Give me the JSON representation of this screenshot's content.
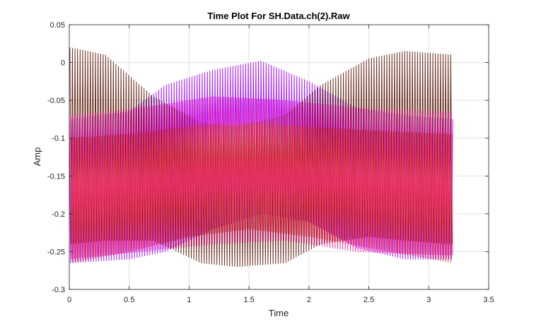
{
  "chart_data": {
    "type": "line",
    "title": "Time Plot For SH.Data.ch(2).Raw",
    "xlabel": "Time",
    "ylabel": "Amp",
    "xlim": [
      0,
      3.5
    ],
    "ylim": [
      -0.3,
      0.05
    ],
    "xticks": [
      0,
      0.5,
      1,
      1.5,
      2,
      2.5,
      3,
      3.5
    ],
    "xtick_labels": [
      "0",
      "0.5",
      "1",
      "1.5",
      "2",
      "2.5",
      "3",
      "3.5"
    ],
    "yticks": [
      -0.3,
      -0.25,
      -0.2,
      -0.15,
      -0.1,
      -0.05,
      0,
      0.05
    ],
    "ytick_labels": [
      "-0.3",
      "-0.25",
      "-0.2",
      "-0.15",
      "-0.1",
      "-0.05",
      "0",
      "0.05"
    ],
    "grid": true,
    "x_end": 3.2,
    "cycles": 150,
    "series": [
      {
        "color": "#a31aff",
        "envelope": [
          {
            "t": 0,
            "top": -0.075,
            "bottom": -0.265
          },
          {
            "t": 0.5,
            "top": -0.065,
            "bottom": -0.26
          },
          {
            "t": 0.8,
            "top": -0.03,
            "bottom": -0.25
          },
          {
            "t": 1.2,
            "top": -0.01,
            "bottom": -0.22
          },
          {
            "t": 1.6,
            "top": 0.002,
            "bottom": -0.2
          },
          {
            "t": 2.0,
            "top": -0.025,
            "bottom": -0.21
          },
          {
            "t": 2.4,
            "top": -0.06,
            "bottom": -0.245
          },
          {
            "t": 2.8,
            "top": -0.07,
            "bottom": -0.26
          },
          {
            "t": 3.2,
            "top": -0.075,
            "bottom": -0.26
          }
        ]
      },
      {
        "color": "#5a1a0a",
        "envelope": [
          {
            "t": 0,
            "top": 0.02,
            "bottom": -0.24
          },
          {
            "t": 0.3,
            "top": 0.01,
            "bottom": -0.235
          },
          {
            "t": 0.7,
            "top": -0.045,
            "bottom": -0.235
          },
          {
            "t": 1.1,
            "top": -0.08,
            "bottom": -0.265
          },
          {
            "t": 1.4,
            "top": -0.085,
            "bottom": -0.27
          },
          {
            "t": 1.8,
            "top": -0.07,
            "bottom": -0.265
          },
          {
            "t": 2.1,
            "top": -0.03,
            "bottom": -0.24
          },
          {
            "t": 2.5,
            "top": 0.005,
            "bottom": -0.23
          },
          {
            "t": 2.8,
            "top": 0.015,
            "bottom": -0.235
          },
          {
            "t": 3.2,
            "top": 0.01,
            "bottom": -0.24
          }
        ]
      },
      {
        "color": "#ff1a9c",
        "envelope": [
          {
            "t": 0,
            "top": -0.07,
            "bottom": -0.26
          },
          {
            "t": 0.6,
            "top": -0.06,
            "bottom": -0.25
          },
          {
            "t": 1.2,
            "top": -0.045,
            "bottom": -0.24
          },
          {
            "t": 1.8,
            "top": -0.05,
            "bottom": -0.235
          },
          {
            "t": 2.4,
            "top": -0.06,
            "bottom": -0.25
          },
          {
            "t": 3.2,
            "top": -0.065,
            "bottom": -0.255
          }
        ]
      },
      {
        "color": "#e6402a",
        "envelope": [
          {
            "t": 0,
            "top": -0.1,
            "bottom": -0.265
          },
          {
            "t": 0.5,
            "top": -0.095,
            "bottom": -0.25
          },
          {
            "t": 1.0,
            "top": -0.085,
            "bottom": -0.23
          },
          {
            "t": 1.5,
            "top": -0.08,
            "bottom": -0.22
          },
          {
            "t": 2.0,
            "top": -0.085,
            "bottom": -0.23
          },
          {
            "t": 2.5,
            "top": -0.09,
            "bottom": -0.245
          },
          {
            "t": 3.2,
            "top": -0.095,
            "bottom": -0.265
          }
        ]
      }
    ]
  }
}
